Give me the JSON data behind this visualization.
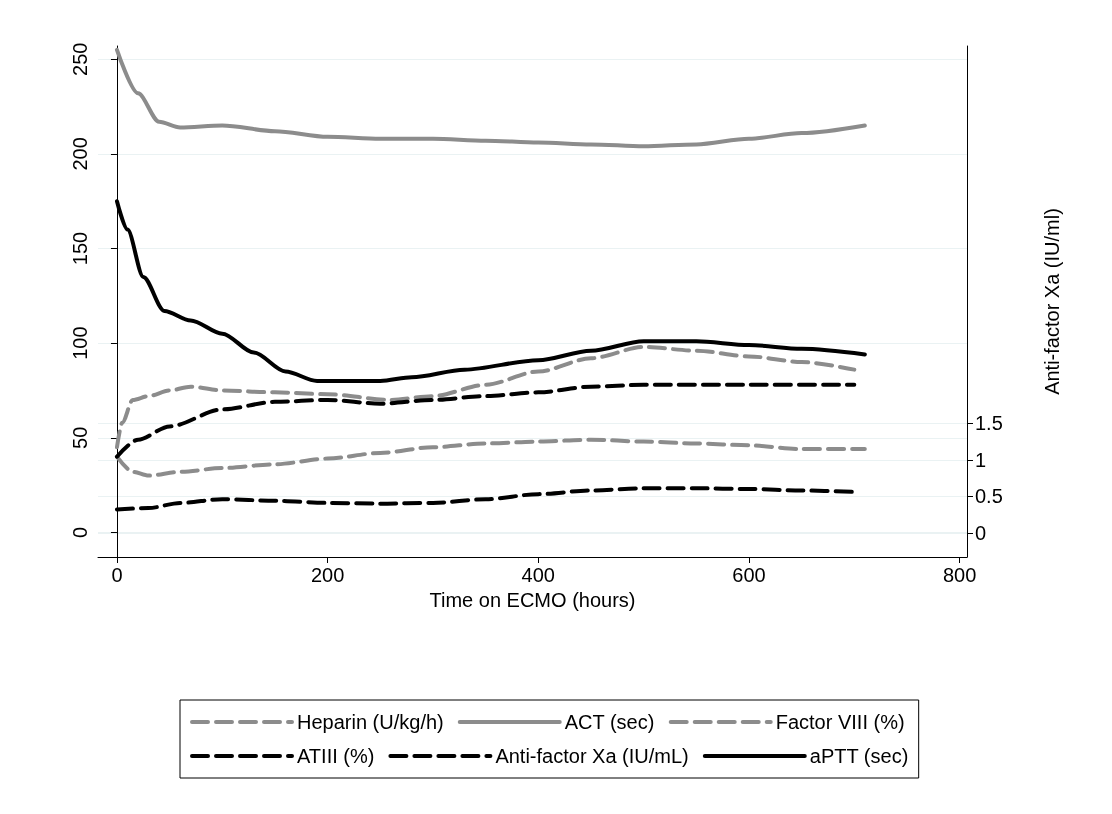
{
  "chart_data": {
    "type": "line",
    "xlabel": "Time on ECMO (hours)",
    "y2label": "Anti-factor Xa (IU/ml)",
    "xlim": [
      -18,
      807
    ],
    "xticks": [
      0,
      200,
      400,
      600,
      800
    ],
    "ylim": [
      -13,
      257
    ],
    "yticks": [
      0,
      50,
      100,
      150,
      200,
      250
    ],
    "y2lim": [
      -0.33,
      6.66
    ],
    "y2ticks": [
      0,
      0.5,
      1,
      1.5
    ],
    "grid": "y",
    "legend": "bottom",
    "marker": "none",
    "series": [
      {
        "name": "Heparin (U/kg/h)",
        "color": "#8c8c8c",
        "line_style": "dashed",
        "x": [
          0,
          15,
          30,
          60,
          100,
          150,
          200,
          250,
          300,
          350,
          400,
          450,
          500,
          550,
          600,
          650,
          710
        ],
        "values": [
          40,
          32,
          30,
          32,
          34,
          36,
          39,
          42,
          45,
          47,
          48,
          49,
          48,
          47,
          46,
          44,
          44
        ]
      },
      {
        "name": "ACT (sec)",
        "color": "#8c8c8c",
        "line_style": "solid",
        "x": [
          0,
          20,
          40,
          60,
          100,
          150,
          200,
          250,
          300,
          350,
          400,
          450,
          500,
          550,
          600,
          650,
          710
        ],
        "values": [
          255,
          232,
          217,
          214,
          215,
          212,
          209,
          208,
          208,
          207,
          206,
          205,
          204,
          205,
          208,
          211,
          215
        ]
      },
      {
        "name": "Factor VIII (%)",
        "color": "#8c8c8c",
        "line_style": "dashed",
        "x": [
          0,
          5,
          15,
          30,
          50,
          70,
          100,
          150,
          200,
          260,
          300,
          350,
          400,
          450,
          500,
          550,
          600,
          650,
          700
        ],
        "values": [
          45,
          58,
          70,
          72,
          75,
          77,
          75,
          74,
          73,
          70,
          72,
          78,
          85,
          92,
          98,
          96,
          93,
          90,
          86
        ]
      },
      {
        "name": "ATIII (%)",
        "color": "#000000",
        "line_style": "dashed",
        "x": [
          0,
          20,
          50,
          100,
          150,
          200,
          250,
          300,
          350,
          400,
          450,
          500,
          600,
          700
        ],
        "values": [
          40,
          49,
          56,
          65,
          69,
          70,
          68,
          70,
          72,
          74,
          77,
          78,
          78,
          78
        ]
      },
      {
        "name": "Anti-factor Xa (IU/mL)",
        "color": "#000000",
        "line_style": "dashed",
        "axis": "y2",
        "x": [
          0,
          30,
          60,
          100,
          150,
          200,
          250,
          300,
          350,
          400,
          450,
          500,
          550,
          600,
          650,
          700
        ],
        "values": [
          0.32,
          0.34,
          0.41,
          0.46,
          0.44,
          0.41,
          0.4,
          0.41,
          0.46,
          0.53,
          0.58,
          0.61,
          0.61,
          0.6,
          0.58,
          0.56
        ]
      },
      {
        "name": "aPTT (sec)",
        "color": "#000000",
        "line_style": "solid",
        "x": [
          0,
          10,
          25,
          45,
          70,
          100,
          130,
          160,
          190,
          250,
          280,
          330,
          400,
          450,
          500,
          550,
          600,
          650,
          710
        ],
        "values": [
          175,
          160,
          135,
          117,
          112,
          105,
          95,
          85,
          80,
          80,
          82,
          86,
          91,
          96,
          101,
          101,
          99,
          97,
          94
        ]
      }
    ]
  }
}
